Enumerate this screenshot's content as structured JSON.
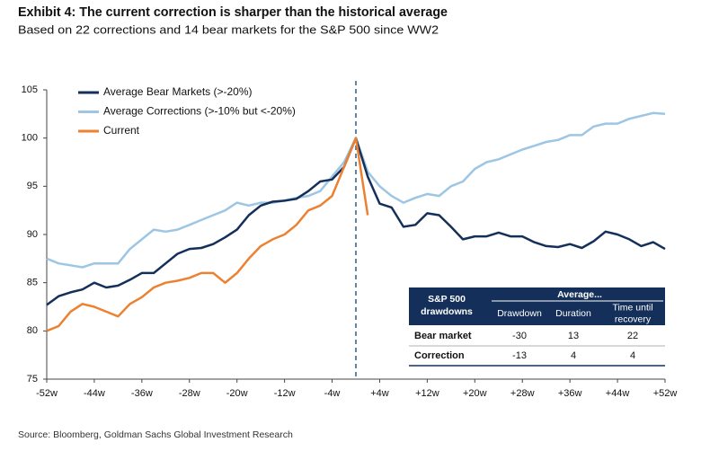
{
  "chart_data": {
    "type": "line",
    "title": "Exhibit 4: The current correction is sharper than the historical average",
    "subtitle": "Based on 22 corrections and 14 bear markets for the S&P 500 since WW2",
    "source": "Source: Bloomberg, Goldman Sachs Global Investment Research",
    "x": [
      -52,
      -50,
      -48,
      -46,
      -44,
      -42,
      -40,
      -38,
      -36,
      -34,
      -32,
      -30,
      -28,
      -26,
      -24,
      -22,
      -20,
      -18,
      -16,
      -14,
      -12,
      -10,
      -8,
      -6,
      -4,
      -2,
      0,
      2,
      4,
      6,
      8,
      10,
      12,
      14,
      16,
      18,
      20,
      22,
      24,
      26,
      28,
      30,
      32,
      34,
      36,
      38,
      40,
      42,
      44,
      46,
      48,
      50,
      52
    ],
    "series": [
      {
        "name": "Average Bear Markets (>-20%)",
        "color": "#14305a",
        "values": [
          82.7,
          83.6,
          84,
          84.3,
          85,
          84.5,
          84.7,
          85.3,
          86,
          86,
          87,
          88,
          88.5,
          88.6,
          89,
          89.7,
          90.5,
          92,
          93,
          93.4,
          93.5,
          93.7,
          94.5,
          95.5,
          95.7,
          97,
          100,
          96,
          93.2,
          92.8,
          90.8,
          91,
          92.2,
          92,
          90.8,
          89.5,
          89.8,
          89.8,
          90.2,
          89.8,
          89.8,
          89.2,
          88.8,
          88.7,
          89,
          88.6,
          89.3,
          90.3,
          90,
          89.5,
          88.8,
          89.2,
          88.5
        ]
      },
      {
        "name": "Average Corrections (>-10% but <-20%)",
        "color": "#9dc6e4",
        "values": [
          87.5,
          87,
          86.8,
          86.6,
          87,
          87,
          87,
          88.5,
          89.5,
          90.5,
          90.3,
          90.5,
          91,
          91.5,
          92,
          92.5,
          93.3,
          93,
          93.3,
          93.3,
          93.5,
          93.8,
          94,
          94.5,
          96,
          97.5,
          100,
          96.5,
          95,
          94,
          93.3,
          93.8,
          94.2,
          94,
          95,
          95.5,
          96.8,
          97.5,
          97.8,
          98.3,
          98.8,
          99.2,
          99.6,
          99.8,
          100.3,
          100.3,
          101.2,
          101.5,
          101.5,
          102,
          102.3,
          102.6,
          102.5
        ]
      },
      {
        "name": "Current",
        "color": "#ec8132",
        "values": [
          80,
          80.5,
          82,
          82.8,
          82.5,
          82,
          81.5,
          82.8,
          83.5,
          84.5,
          85,
          85.2,
          85.5,
          86,
          86,
          85,
          86,
          87.5,
          88.8,
          89.5,
          90,
          91,
          92.5,
          93,
          94,
          97,
          100,
          92,
          null,
          null,
          null,
          null,
          null,
          null,
          null,
          null,
          null,
          null,
          null,
          null,
          null,
          null,
          null,
          null,
          null,
          null,
          null,
          null,
          null,
          null,
          null,
          null,
          null
        ]
      }
    ],
    "xlim": [
      -52,
      52
    ],
    "xticks": [
      {
        "value": -52,
        "label": "-52w"
      },
      {
        "value": -44,
        "label": "-44w"
      },
      {
        "value": -36,
        "label": "-36w"
      },
      {
        "value": -28,
        "label": "-28w"
      },
      {
        "value": -20,
        "label": "-20w"
      },
      {
        "value": -12,
        "label": "-12w"
      },
      {
        "value": -4,
        "label": "-4w"
      },
      {
        "value": 4,
        "label": "+4w"
      },
      {
        "value": 12,
        "label": "+12w"
      },
      {
        "value": 20,
        "label": "+20w"
      },
      {
        "value": 28,
        "label": "+28w"
      },
      {
        "value": 36,
        "label": "+36w"
      },
      {
        "value": 44,
        "label": "+44w"
      },
      {
        "value": 52,
        "label": "+52w"
      }
    ],
    "ylim": [
      75,
      105
    ],
    "yticks": [
      75,
      80,
      85,
      90,
      95,
      100,
      105
    ],
    "table": {
      "header": [
        "S&P 500",
        "drawdowns"
      ],
      "group": "Average...",
      "columns": [
        [
          "Drawdown"
        ],
        [
          "Duration"
        ],
        [
          "Time until",
          "recovery"
        ]
      ],
      "rows": [
        {
          "label": "Bear market",
          "values": [
            -30,
            13,
            22
          ]
        },
        {
          "label": "Correction",
          "values": [
            -13,
            4,
            4
          ]
        }
      ],
      "color": "#14305a"
    }
  }
}
